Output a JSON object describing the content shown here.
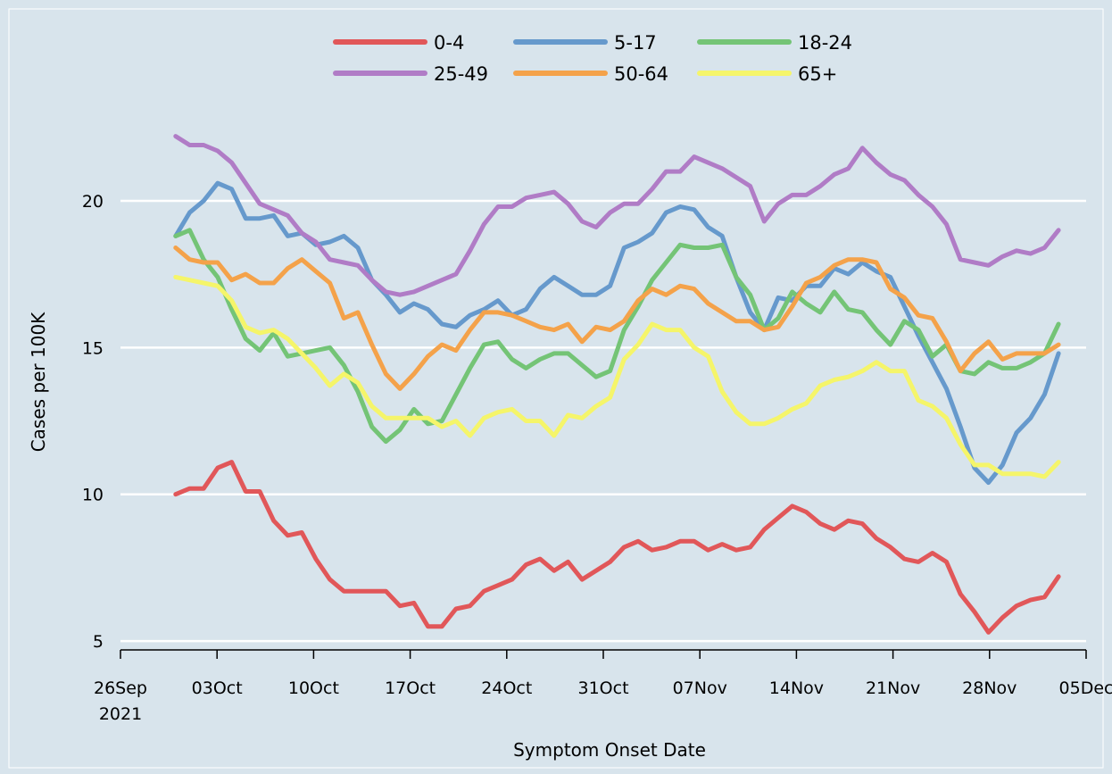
{
  "chart_data": {
    "type": "line",
    "title": "",
    "xlabel": "Symptom Onset Date",
    "ylabel": "Cases per 100K",
    "x_start": "2021-09-30",
    "x_end": "2021-12-03",
    "xlim": [
      "2021-09-26",
      "2021-12-05"
    ],
    "ylim": [
      4.7,
      23.8
    ],
    "y_ticks": [
      5,
      10,
      15,
      20
    ],
    "x_ticks": [
      {
        "date": "2021-09-26",
        "label": "26Sep",
        "sublabel": "2021"
      },
      {
        "date": "2021-10-03",
        "label": "03Oct",
        "sublabel": ""
      },
      {
        "date": "2021-10-10",
        "label": "10Oct",
        "sublabel": ""
      },
      {
        "date": "2021-10-17",
        "label": "17Oct",
        "sublabel": ""
      },
      {
        "date": "2021-10-24",
        "label": "24Oct",
        "sublabel": ""
      },
      {
        "date": "2021-10-31",
        "label": "31Oct",
        "sublabel": ""
      },
      {
        "date": "2021-11-07",
        "label": "07Nov",
        "sublabel": ""
      },
      {
        "date": "2021-11-14",
        "label": "14Nov",
        "sublabel": ""
      },
      {
        "date": "2021-11-21",
        "label": "21Nov",
        "sublabel": ""
      },
      {
        "date": "2021-11-28",
        "label": "28Nov",
        "sublabel": ""
      },
      {
        "date": "2021-12-05",
        "label": "05Dec",
        "sublabel": ""
      }
    ],
    "grid": "horizontal",
    "legend_position": "top",
    "series": [
      {
        "name": "0-4",
        "color": "#e15759",
        "values": [
          10.0,
          10.2,
          10.2,
          10.9,
          11.1,
          10.1,
          10.1,
          9.1,
          8.6,
          8.7,
          7.8,
          7.1,
          6.7,
          6.7,
          6.7,
          6.7,
          6.2,
          6.3,
          5.5,
          5.5,
          6.1,
          6.2,
          6.7,
          6.9,
          7.1,
          7.6,
          7.8,
          7.4,
          7.7,
          7.1,
          7.4,
          7.7,
          8.2,
          8.4,
          8.1,
          8.2,
          8.4,
          8.4,
          8.1,
          8.3,
          8.1,
          8.2,
          8.8,
          9.2,
          9.6,
          9.4,
          9.0,
          8.8,
          9.1,
          9.0,
          8.5,
          8.2,
          7.8,
          7.7,
          8.0,
          7.7,
          6.6,
          6.0,
          5.3,
          5.8,
          6.2,
          6.4,
          6.5,
          7.2
        ]
      },
      {
        "name": "5-17",
        "color": "#6699cc",
        "values": [
          18.8,
          19.6,
          20.0,
          20.6,
          20.4,
          19.4,
          19.4,
          19.5,
          18.8,
          18.9,
          18.5,
          18.6,
          18.8,
          18.4,
          17.3,
          16.8,
          16.2,
          16.5,
          16.3,
          15.8,
          15.7,
          16.1,
          16.3,
          16.6,
          16.1,
          16.3,
          17.0,
          17.4,
          17.1,
          16.8,
          16.8,
          17.1,
          18.4,
          18.6,
          18.9,
          19.6,
          19.8,
          19.7,
          19.1,
          18.8,
          17.4,
          16.2,
          15.6,
          16.7,
          16.6,
          17.1,
          17.1,
          17.7,
          17.5,
          17.9,
          17.6,
          17.4,
          16.4,
          15.4,
          14.5,
          13.6,
          12.3,
          10.9,
          10.4,
          11.0,
          12.1,
          12.6,
          13.4,
          14.8
        ]
      },
      {
        "name": "18-24",
        "color": "#74c476",
        "values": [
          18.8,
          19.0,
          18.0,
          17.4,
          16.3,
          15.3,
          14.9,
          15.5,
          14.7,
          14.8,
          14.9,
          15.0,
          14.4,
          13.5,
          12.3,
          11.8,
          12.2,
          12.9,
          12.4,
          12.5,
          13.4,
          14.3,
          15.1,
          15.2,
          14.6,
          14.3,
          14.6,
          14.8,
          14.8,
          14.4,
          14.0,
          14.2,
          15.6,
          16.4,
          17.3,
          17.9,
          18.5,
          18.4,
          18.4,
          18.5,
          17.4,
          16.8,
          15.6,
          16.0,
          16.9,
          16.5,
          16.2,
          16.9,
          16.3,
          16.2,
          15.6,
          15.1,
          15.9,
          15.6,
          14.7,
          15.1,
          14.2,
          14.1,
          14.5,
          14.3,
          14.3,
          14.5,
          14.8,
          15.8
        ]
      },
      {
        "name": "25-49",
        "color": "#b07cc6",
        "values": [
          22.2,
          21.9,
          21.9,
          21.7,
          21.3,
          20.6,
          19.9,
          19.7,
          19.5,
          18.9,
          18.6,
          18.0,
          17.9,
          17.8,
          17.3,
          16.9,
          16.8,
          16.9,
          17.1,
          17.3,
          17.5,
          18.3,
          19.2,
          19.8,
          19.8,
          20.1,
          20.2,
          20.3,
          19.9,
          19.3,
          19.1,
          19.6,
          19.9,
          19.9,
          20.4,
          21.0,
          21.0,
          21.5,
          21.3,
          21.1,
          20.8,
          20.5,
          19.3,
          19.9,
          20.2,
          20.2,
          20.5,
          20.9,
          21.1,
          21.8,
          21.3,
          20.9,
          20.7,
          20.2,
          19.8,
          19.2,
          18.0,
          17.9,
          17.8,
          18.1,
          18.3,
          18.2,
          18.4,
          19.0
        ]
      },
      {
        "name": "50-64",
        "color": "#f4a24a",
        "values": [
          18.4,
          18.0,
          17.9,
          17.9,
          17.3,
          17.5,
          17.2,
          17.2,
          17.7,
          18.0,
          17.6,
          17.2,
          16.0,
          16.2,
          15.1,
          14.1,
          13.6,
          14.1,
          14.7,
          15.1,
          14.9,
          15.6,
          16.2,
          16.2,
          16.1,
          15.9,
          15.7,
          15.6,
          15.8,
          15.2,
          15.7,
          15.6,
          15.9,
          16.6,
          17.0,
          16.8,
          17.1,
          17.0,
          16.5,
          16.2,
          15.9,
          15.9,
          15.6,
          15.7,
          16.4,
          17.2,
          17.4,
          17.8,
          18.0,
          18.0,
          17.9,
          17.0,
          16.7,
          16.1,
          16.0,
          15.2,
          14.2,
          14.8,
          15.2,
          14.6,
          14.8,
          14.8,
          14.8,
          15.1
        ]
      },
      {
        "name": "65+",
        "color": "#f5f56a",
        "values": [
          17.4,
          17.3,
          17.2,
          17.1,
          16.6,
          15.7,
          15.5,
          15.6,
          15.3,
          14.8,
          14.3,
          13.7,
          14.1,
          13.8,
          13.0,
          12.6,
          12.6,
          12.6,
          12.6,
          12.3,
          12.5,
          12.0,
          12.6,
          12.8,
          12.9,
          12.5,
          12.5,
          12.0,
          12.7,
          12.6,
          13.0,
          13.3,
          14.6,
          15.1,
          15.8,
          15.6,
          15.6,
          15.0,
          14.7,
          13.5,
          12.8,
          12.4,
          12.4,
          12.6,
          12.9,
          13.1,
          13.7,
          13.9,
          14.0,
          14.2,
          14.5,
          14.2,
          14.2,
          13.2,
          13.0,
          12.6,
          11.7,
          11.0,
          11.0,
          10.7,
          10.7,
          10.7,
          10.6,
          11.1
        ]
      }
    ]
  }
}
